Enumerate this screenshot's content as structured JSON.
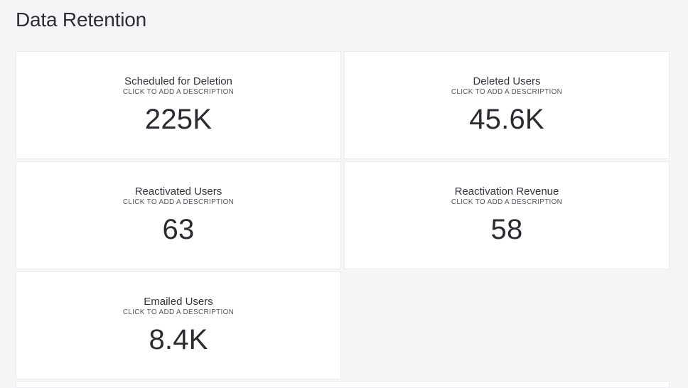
{
  "page": {
    "title": "Data Retention"
  },
  "cards": [
    {
      "title": "Scheduled for Deletion",
      "description": "CLICK TO ADD A DESCRIPTION",
      "value": "225K"
    },
    {
      "title": "Deleted Users",
      "description": "CLICK TO ADD A DESCRIPTION",
      "value": "45.6K"
    },
    {
      "title": "Reactivated Users",
      "description": "CLICK TO ADD A DESCRIPTION",
      "value": "63"
    },
    {
      "title": "Reactivation Revenue",
      "description": "CLICK TO ADD A DESCRIPTION",
      "value": "58"
    },
    {
      "title": "Emailed Users",
      "description": "CLICK TO ADD A DESCRIPTION",
      "value": "8.4K"
    }
  ],
  "colors": {
    "background": "#f5f5f7",
    "card": "#ffffff",
    "text": "#2a2a31"
  }
}
